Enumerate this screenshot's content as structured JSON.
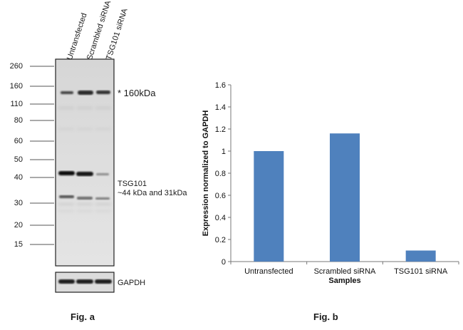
{
  "fig_a": {
    "caption": "Fig. a",
    "lanes": [
      "Untransfected",
      "Scrambled siRNA",
      "TSG101 siRNA"
    ],
    "markers": [
      "260",
      "160",
      "110",
      "80",
      "60",
      "50",
      "40",
      "30",
      "20",
      "15"
    ],
    "annotations": {
      "band_160": "* 160kDa",
      "tsg101_name": "TSG101",
      "tsg101_sizes": "~44 kDa and 31kDa",
      "loading_control": "GAPDH"
    }
  },
  "fig_b": {
    "caption": "Fig. b"
  },
  "chart_data": {
    "type": "bar",
    "categories": [
      "Untransfected",
      "Scrambled siRNA",
      "TSG101 siRNA"
    ],
    "values": [
      1.0,
      1.16,
      0.1
    ],
    "xlabel": "Samples",
    "ylabel": "Expression normalized to GAPDH",
    "ylim": [
      0,
      1.6
    ],
    "yticks": [
      "0",
      "0.2",
      "0.4",
      "0.6",
      "0.8",
      "1",
      "1.2",
      "1.4",
      "1.6"
    ],
    "bar_color": "#4f81bd",
    "grid": false,
    "legend": "none"
  }
}
